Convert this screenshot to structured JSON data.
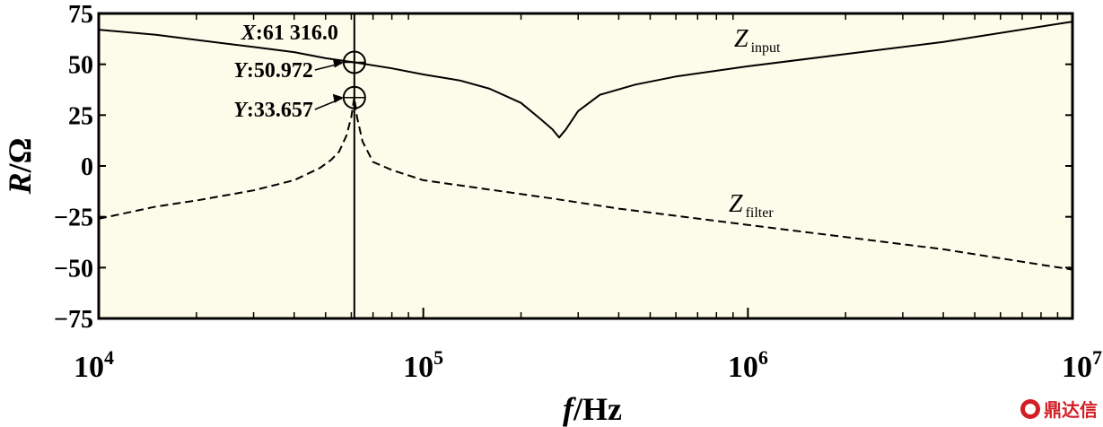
{
  "chart_data": {
    "type": "line",
    "x_scale": "log",
    "xlim": [
      10000,
      10000000
    ],
    "ylim": [
      -75,
      75
    ],
    "y_ticks": [
      "75",
      "50",
      "25",
      "0",
      "−25",
      "−50",
      "−75"
    ],
    "y_tick_values": [
      75,
      50,
      25,
      0,
      -25,
      -50,
      -75
    ],
    "x_ticks": [
      {
        "base": "10",
        "exp": "4",
        "value": 10000
      },
      {
        "base": "10",
        "exp": "5",
        "value": 100000
      },
      {
        "base": "10",
        "exp": "6",
        "value": 1000000
      },
      {
        "base": "10",
        "exp": "7",
        "value": 10000000
      }
    ],
    "xlabel": {
      "italic": "f",
      "rest": "/Hz"
    },
    "ylabel": {
      "italic": "R",
      "rest": "/Ω"
    },
    "background": "#fdfbe9",
    "series": [
      {
        "name": "Z",
        "subscript": "input",
        "style": "solid",
        "points": [
          [
            10000,
            67
          ],
          [
            15000,
            64.5
          ],
          [
            20000,
            62
          ],
          [
            30000,
            58.5
          ],
          [
            40000,
            56
          ],
          [
            50000,
            53
          ],
          [
            61316,
            50.972
          ],
          [
            80000,
            48
          ],
          [
            100000,
            45
          ],
          [
            130000,
            42
          ],
          [
            160000,
            38
          ],
          [
            200000,
            31
          ],
          [
            230000,
            23
          ],
          [
            250000,
            18
          ],
          [
            262000,
            14
          ],
          [
            275000,
            18
          ],
          [
            300000,
            27
          ],
          [
            350000,
            35
          ],
          [
            450000,
            40
          ],
          [
            600000,
            44
          ],
          [
            1000000,
            49
          ],
          [
            2000000,
            55
          ],
          [
            4000000,
            61
          ],
          [
            10000000,
            71
          ]
        ]
      },
      {
        "name": "Z",
        "subscript": "filter",
        "style": "dashed",
        "points": [
          [
            10000,
            -26
          ],
          [
            15000,
            -20
          ],
          [
            20000,
            -17
          ],
          [
            30000,
            -12
          ],
          [
            40000,
            -7
          ],
          [
            48000,
            -1
          ],
          [
            52000,
            3
          ],
          [
            55000,
            7
          ],
          [
            58000,
            15
          ],
          [
            60000,
            24
          ],
          [
            61316,
            33.657
          ],
          [
            62500,
            24
          ],
          [
            65000,
            12
          ],
          [
            70000,
            2
          ],
          [
            80000,
            -2
          ],
          [
            100000,
            -7
          ],
          [
            150000,
            -11
          ],
          [
            250000,
            -16
          ],
          [
            400000,
            -21
          ],
          [
            1000000,
            -29
          ],
          [
            2000000,
            -35
          ],
          [
            4000000,
            -41
          ],
          [
            10000000,
            -51
          ]
        ]
      }
    ],
    "cursor": {
      "x": 61316,
      "x_label_var": "X",
      "x_label_value": ":61 316.0",
      "markers": [
        {
          "y": 50.972,
          "label_var": "Y",
          "label_value": ":50.972"
        },
        {
          "y": 33.657,
          "label_var": "Y",
          "label_value": ":33.657"
        }
      ]
    }
  },
  "watermark": "鼎达信"
}
